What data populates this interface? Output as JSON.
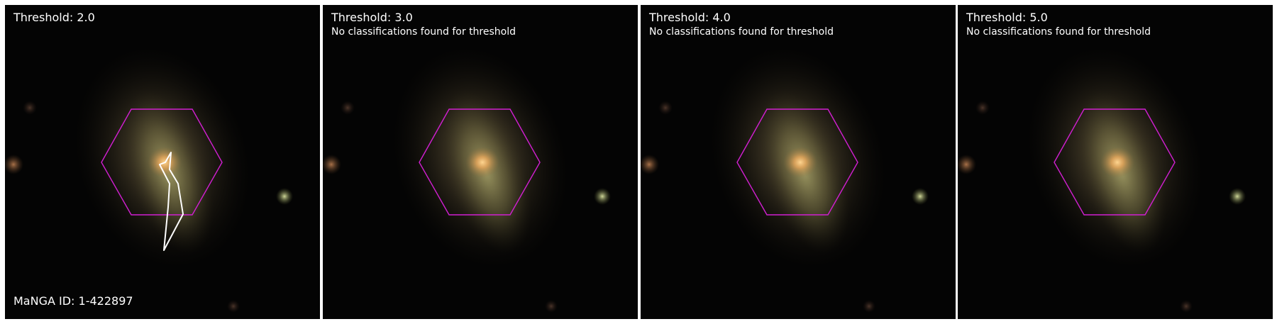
{
  "figure": {
    "manga_id_label": "MaNGA ID: 1-422897",
    "colors": {
      "background": "#040404",
      "hexagon": "#d11fd1",
      "contour": "#ffffff"
    },
    "panels": [
      {
        "title": "Threshold: 2.0",
        "note": ""
      },
      {
        "title": "Threshold: 3.0",
        "note": "No classifications found for threshold"
      },
      {
        "title": "Threshold: 4.0",
        "note": "No classifications found for threshold"
      },
      {
        "title": "Threshold: 5.0",
        "note": "No classifications found for threshold"
      }
    ]
  }
}
